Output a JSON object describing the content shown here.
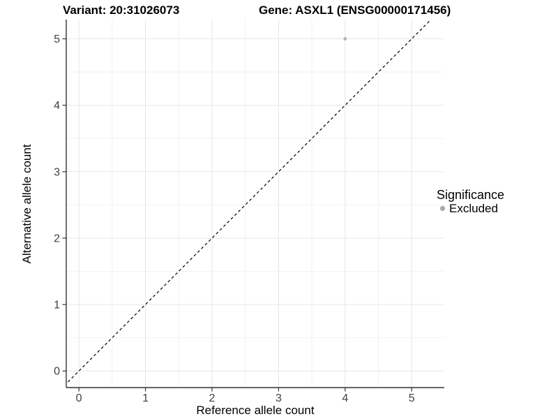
{
  "chart_data": {
    "type": "scatter",
    "title_left": "Variant: 20:31026073",
    "title_right": "Gene: ASXL1 (ENSG00000171456)",
    "xlabel": "Reference allele count",
    "ylabel": "Alternative allele count",
    "x_ticks": [
      0,
      1,
      2,
      3,
      4,
      5
    ],
    "y_ticks": [
      0,
      1,
      2,
      3,
      4,
      5
    ],
    "xlim": [
      -0.19,
      5.49
    ],
    "ylim": [
      -0.25,
      5.29
    ],
    "minor_grid_step": 0.5,
    "grid": "major+minor",
    "points": [
      {
        "x": 4,
        "y": 5,
        "significance": "Excluded"
      }
    ],
    "reference_line": {
      "equation": "y = x",
      "style": "dashed",
      "color": "#000000"
    },
    "legend": {
      "title": "Significance",
      "position": "right",
      "entries": [
        {
          "label": "Excluded",
          "color": "#a9a9a9",
          "marker": "circle"
        }
      ]
    },
    "colors": {
      "point": "#b3b3b3",
      "grid_major": "#e6e6e6",
      "grid_minor": "#f2f2f2",
      "axis": "#333333",
      "tick": "#333333",
      "background": "#ffffff"
    }
  }
}
